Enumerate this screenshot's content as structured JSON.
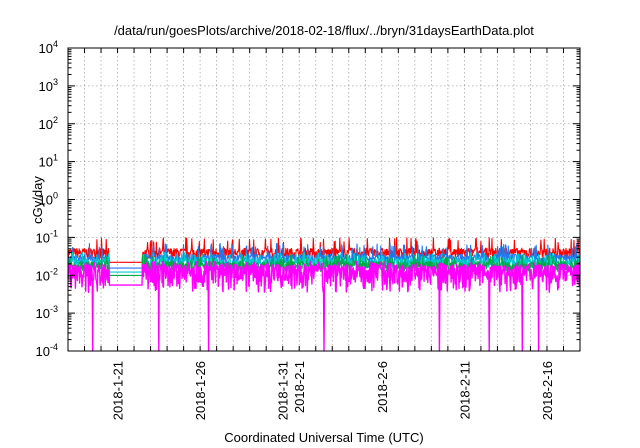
{
  "chart_data": {
    "type": "line",
    "title": "/data/run/goesPlots/archive/2018-02-18/flux/../bryn/31daysEarthData.plot",
    "xlabel": "Coordinated Universal Time (UTC)",
    "ylabel": "cGy/day",
    "yscale": "log",
    "ylim": [
      0.0001,
      10000
    ],
    "xlim": [
      "2018-01-18",
      "2018-02-18"
    ],
    "grid": true,
    "x_ticks": [
      "2018-1-21",
      "2018-1-26",
      "2018-1-31",
      "2018-2-1",
      "2018-2-6",
      "2018-2-11",
      "2018-2-16"
    ],
    "y_ticks": [
      {
        "base": "10",
        "exp": "-4"
      },
      {
        "base": "10",
        "exp": "-3"
      },
      {
        "base": "10",
        "exp": "-2"
      },
      {
        "base": "10",
        "exp": "-1"
      },
      {
        "base": "10",
        "exp": "0"
      },
      {
        "base": "10",
        "exp": "1"
      },
      {
        "base": "10",
        "exp": "2"
      },
      {
        "base": "10",
        "exp": "3"
      },
      {
        "base": "10",
        "exp": "4"
      }
    ],
    "data_gap": [
      "2018-01-20",
      "2018-01-22"
    ],
    "dropouts": [
      "2018-01-19",
      "2018-01-23",
      "2018-01-26",
      "2018-02-02",
      "2018-02-09",
      "2018-02-12",
      "2018-02-14",
      "2018-02-15"
    ],
    "series": [
      {
        "color": "#ff0000",
        "typical": 0.04,
        "peak": 0.085
      },
      {
        "color": "#2277ee",
        "typical": 0.028,
        "peak": 0.06
      },
      {
        "color": "#00cccc",
        "typical": 0.022,
        "peak": 0.035
      },
      {
        "color": "#00aa44",
        "typical": 0.018,
        "peak": 0.03
      },
      {
        "color": "#ff00ff",
        "typical": 0.01,
        "peak": 0.02
      }
    ]
  }
}
